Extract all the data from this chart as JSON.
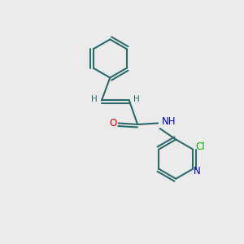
{
  "background_color": "#ebebeb",
  "bond_color": "#2d6b6b",
  "atom_colors": {
    "O": "#dd0000",
    "N": "#0000cc",
    "Cl": "#00aa00",
    "H": "#2d6b6b",
    "C": "#2d6b6b"
  },
  "bond_width": 1.5,
  "font_size_atom": 8.5,
  "font_size_H": 7.5
}
